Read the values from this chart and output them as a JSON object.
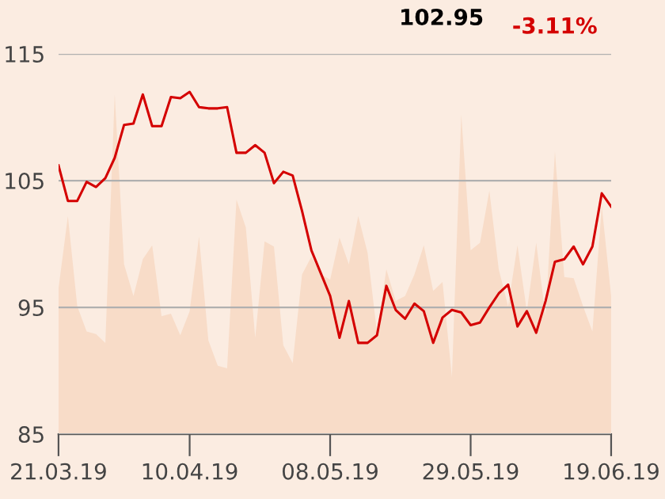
{
  "chart_data": {
    "type": "line",
    "title": "102.95",
    "subtitle": "-3.11%",
    "categories": [
      "21.03.19",
      null,
      null,
      null,
      null,
      null,
      null,
      null,
      null,
      null,
      null,
      null,
      null,
      null,
      "10.04.19",
      null,
      null,
      null,
      null,
      null,
      null,
      null,
      null,
      null,
      null,
      null,
      null,
      null,
      null,
      "08.05.19",
      null,
      null,
      null,
      null,
      null,
      null,
      null,
      null,
      null,
      null,
      null,
      null,
      null,
      null,
      "29.05.19",
      null,
      null,
      null,
      null,
      null,
      null,
      null,
      null,
      null,
      null,
      null,
      null,
      null,
      null,
      "19.06.19"
    ],
    "series": [
      {
        "type": "area",
        "color": "#f8dcc8",
        "values": [
          96.5,
          102.2,
          95.1,
          93.1,
          92.9,
          92.2,
          111.8,
          98.4,
          95.9,
          98.8,
          99.9,
          94.3,
          94.5,
          92.8,
          94.7,
          100.6,
          92.4,
          90.4,
          90.2,
          103.5,
          101.3,
          92.6,
          100.2,
          99.8,
          92.0,
          90.6,
          97.6,
          99.0,
          97.6,
          97.2,
          100.5,
          98.4,
          102.2,
          99.3,
          93.0,
          98.0,
          95.5,
          95.9,
          97.6,
          99.9,
          96.3,
          97.0,
          89.5,
          110.2,
          99.5,
          100.1,
          104.2,
          98.0,
          95.1,
          99.9,
          94.7,
          100.1,
          94.3,
          107.3,
          97.4,
          97.3,
          95.1,
          93.1,
          103.0,
          95.9
        ]
      },
      {
        "color": "#d40000",
        "values": [
          106.2,
          103.4,
          103.4,
          104.9,
          104.5,
          105.2,
          106.8,
          109.4,
          109.5,
          111.8,
          109.3,
          109.3,
          111.6,
          111.5,
          112.0,
          110.8,
          110.7,
          110.7,
          110.8,
          107.2,
          107.2,
          107.8,
          107.2,
          104.8,
          105.7,
          105.4,
          102.6,
          99.5,
          97.7,
          95.9,
          92.6,
          95.5,
          92.2,
          92.2,
          92.8,
          96.7,
          94.8,
          94.1,
          95.3,
          94.7,
          92.2,
          94.2,
          94.8,
          94.6,
          93.6,
          93.8,
          95.0,
          96.1,
          96.8,
          93.5,
          94.7,
          93.0,
          95.5,
          98.6,
          98.8,
          99.8,
          98.4,
          99.8,
          104.0,
          102.95
        ]
      }
    ],
    "ylim": [
      85,
      115
    ],
    "yticks": [
      85,
      95,
      105,
      115
    ],
    "grid": "y",
    "marker": "none",
    "line_style": "solid"
  }
}
